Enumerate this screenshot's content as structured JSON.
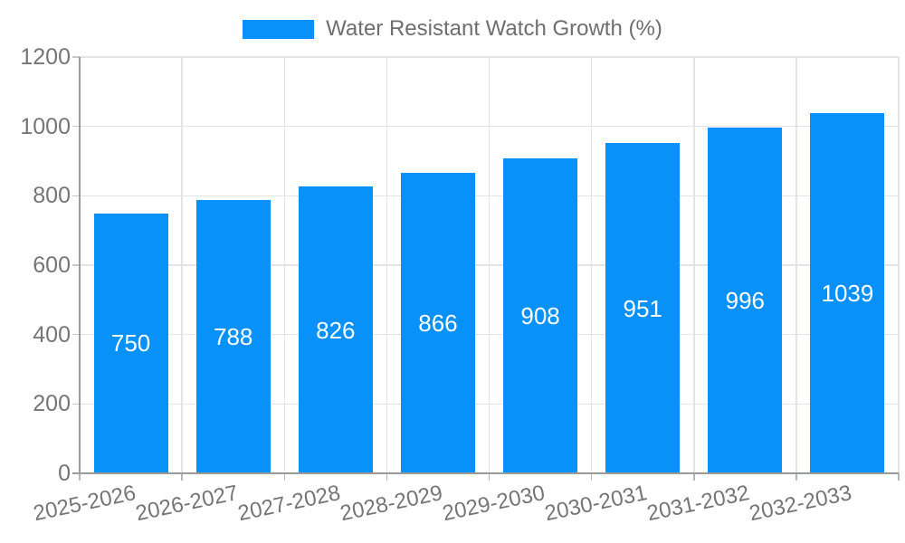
{
  "legend": {
    "label": "Water Resistant Watch Growth (%)"
  },
  "colors": {
    "bar": "#0991fa",
    "bar_value_text": "#ffffff",
    "grid_line": "#e3e3e3",
    "axis_line": "#9a9a9a",
    "tick_mark": "#c7c7c7",
    "x_tick_mark": "#b5b5b5",
    "tick_label": "#757575",
    "legend_label": "#6e6e6e",
    "background": "#ffffff"
  },
  "chart_data": {
    "type": "bar",
    "title": "Water Resistant Watch Growth (%)",
    "categories": [
      "2025-2026",
      "2026-2027",
      "2027-2028",
      "2028-2029",
      "2029-2030",
      "2030-2031",
      "2031-2032",
      "2032-2033"
    ],
    "series": [
      {
        "name": "Water Resistant Watch Growth (%)",
        "values": [
          750,
          788,
          826,
          866,
          908,
          951,
          996,
          1039
        ]
      }
    ],
    "values": [
      750,
      788,
      826,
      866,
      908,
      951,
      996,
      1039
    ],
    "value_labels": [
      "750",
      "788",
      "826",
      "866",
      "908",
      "951",
      "996",
      "1039"
    ],
    "xlabel": "",
    "ylabel": "",
    "ylim": [
      0,
      1200
    ],
    "yticks": [
      0,
      200,
      400,
      600,
      800,
      1000,
      1200
    ],
    "grid": true,
    "legend_position": "top-center",
    "value_label_position": "inside-center",
    "x_tick_rotation_deg": -12
  }
}
